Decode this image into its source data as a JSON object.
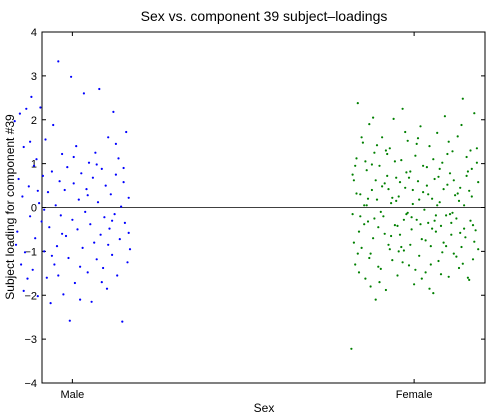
{
  "chart_data": {
    "type": "scatter",
    "title": "Sex vs. component 39 subject–loadings",
    "xlabel": "Sex",
    "ylabel": "Subject loading for component #39",
    "categories": [
      "Male",
      "Female"
    ],
    "ylim": [
      -4,
      4
    ],
    "yticks": [
      "−4",
      "−3",
      "−2",
      "−1",
      "0",
      "1",
      "2",
      "3",
      "4"
    ],
    "zero_line": true,
    "grid": false,
    "series": [
      {
        "color": "#0000ff",
        "points": [
          [
            -0.45,
            1.97
          ],
          [
            -0.43,
            -0.55
          ],
          [
            -0.42,
            0.65
          ],
          [
            -0.41,
            2.14
          ],
          [
            -0.4,
            -1.3
          ],
          [
            -0.39,
            0.25
          ],
          [
            -0.38,
            1.38
          ],
          [
            -0.37,
            -1.02
          ],
          [
            -0.36,
            2.25
          ],
          [
            -0.35,
            -1.62
          ],
          [
            -0.34,
            0.48
          ],
          [
            -0.33,
            -0.2
          ],
          [
            -0.32,
            2.52
          ],
          [
            -0.31,
            -1.42
          ],
          [
            -0.3,
            0.95
          ],
          [
            -0.29,
            -0.7
          ],
          [
            -0.28,
            1.1
          ],
          [
            -0.27,
            -2.02
          ],
          [
            -0.26,
            0.1
          ],
          [
            -0.25,
            2.28
          ],
          [
            -0.24,
            -0.32
          ],
          [
            -0.23,
            0.72
          ],
          [
            -0.22,
            -1.0
          ],
          [
            -0.21,
            1.55
          ],
          [
            -0.2,
            -1.6
          ],
          [
            -0.19,
            0.35
          ],
          [
            -0.18,
            -0.45
          ],
          [
            -0.17,
            -2.18
          ],
          [
            -0.16,
            0.82
          ],
          [
            -0.15,
            1.88
          ],
          [
            -0.14,
            -1.3
          ],
          [
            -0.13,
            0.05
          ],
          [
            -0.12,
            -0.88
          ],
          [
            -0.11,
            3.33
          ],
          [
            -0.1,
            0.6
          ],
          [
            -0.09,
            -0.18
          ],
          [
            -0.08,
            1.22
          ],
          [
            -0.07,
            -1.98
          ],
          [
            -0.06,
            0.4
          ],
          [
            -0.05,
            -0.65
          ],
          [
            -0.04,
            0.92
          ],
          [
            -0.03,
            -1.15
          ],
          [
            -0.02,
            -2.58
          ],
          [
            -0.01,
            2.98
          ],
          [
            0.0,
            -0.28
          ],
          [
            0.01,
            0.55
          ],
          [
            0.02,
            -1.72
          ],
          [
            0.03,
            1.4
          ],
          [
            0.04,
            -0.5
          ],
          [
            0.05,
            0.18
          ],
          [
            0.06,
            -1.35
          ],
          [
            0.07,
            0.78
          ],
          [
            0.08,
            -0.92
          ],
          [
            0.09,
            2.6
          ],
          [
            0.1,
            -0.1
          ],
          [
            0.11,
            0.42
          ],
          [
            0.12,
            -1.48
          ],
          [
            0.13,
            1.02
          ],
          [
            0.14,
            -0.38
          ],
          [
            0.15,
            -2.15
          ],
          [
            0.16,
            0.68
          ],
          [
            0.17,
            -0.8
          ],
          [
            0.18,
            1.25
          ],
          [
            0.19,
            -1.18
          ],
          [
            0.2,
            0.12
          ],
          [
            0.21,
            2.7
          ],
          [
            0.22,
            -0.62
          ],
          [
            0.23,
            0.88
          ],
          [
            0.24,
            -1.38
          ],
          [
            0.25,
            -0.22
          ],
          [
            0.26,
            0.5
          ],
          [
            0.27,
            -1.85
          ],
          [
            0.28,
            1.6
          ],
          [
            0.29,
            -0.48
          ],
          [
            0.3,
            0.3
          ],
          [
            0.31,
            -1.08
          ],
          [
            0.32,
            2.18
          ],
          [
            0.33,
            -0.15
          ],
          [
            0.34,
            0.75
          ],
          [
            0.35,
            -1.55
          ],
          [
            0.36,
            1.12
          ],
          [
            0.37,
            -0.72
          ],
          [
            0.38,
            0.02
          ],
          [
            0.39,
            -2.6
          ],
          [
            0.4,
            0.58
          ],
          [
            0.41,
            -0.35
          ],
          [
            0.42,
            1.72
          ],
          [
            0.43,
            -1.25
          ],
          [
            0.44,
            0.22
          ],
          [
            0.45,
            -0.95
          ],
          [
            -0.44,
            -0.85
          ],
          [
            -0.33,
            1.5
          ],
          [
            -0.22,
            -0.05
          ],
          [
            -0.11,
            -1.55
          ],
          [
            0.01,
            1.15
          ],
          [
            0.12,
            0.28
          ],
          [
            0.23,
            -1.7
          ],
          [
            0.34,
            1.45
          ],
          [
            0.44,
            -0.58
          ],
          [
            -0.27,
            0.38
          ],
          [
            -0.08,
            -0.6
          ],
          [
            0.06,
            -2.1
          ],
          [
            0.19,
            0.98
          ],
          [
            0.31,
            -0.3
          ],
          [
            -0.38,
            -1.9
          ],
          [
            -0.16,
            -1.1
          ],
          [
            0.28,
            -0.85
          ],
          [
            0.4,
            0.9
          ]
        ]
      },
      {
        "color": "#008000",
        "points": [
          [
            -0.49,
            -3.22
          ],
          [
            -0.48,
            -0.15
          ],
          [
            -0.47,
            0.62
          ],
          [
            -0.46,
            -1.3
          ],
          [
            -0.45,
            1.12
          ],
          [
            -0.44,
            2.38
          ],
          [
            -0.43,
            -0.55
          ],
          [
            -0.42,
            0.3
          ],
          [
            -0.41,
            -0.92
          ],
          [
            -0.4,
            1.48
          ],
          [
            -0.39,
            0.05
          ],
          [
            -0.38,
            -1.62
          ],
          [
            -0.37,
            0.85
          ],
          [
            -0.36,
            -0.32
          ],
          [
            -0.35,
            1.9
          ],
          [
            -0.34,
            -1.05
          ],
          [
            -0.33,
            0.4
          ],
          [
            -0.32,
            -0.7
          ],
          [
            -0.31,
            1.25
          ],
          [
            -0.3,
            -2.1
          ],
          [
            -0.29,
            0.18
          ],
          [
            -0.28,
            -0.45
          ],
          [
            -0.27,
            0.95
          ],
          [
            -0.26,
            -1.4
          ],
          [
            -0.25,
            1.6
          ],
          [
            -0.24,
            -0.2
          ],
          [
            -0.23,
            0.55
          ],
          [
            -0.22,
            -1.88
          ],
          [
            -0.21,
            0.72
          ],
          [
            -0.2,
            -0.85
          ],
          [
            -0.19,
            1.35
          ],
          [
            -0.18,
            0.1
          ],
          [
            -0.17,
            -1.2
          ],
          [
            -0.16,
            2.02
          ],
          [
            -0.15,
            -0.4
          ],
          [
            -0.14,
            0.68
          ],
          [
            -0.13,
            -1.55
          ],
          [
            -0.12,
            0.25
          ],
          [
            -0.11,
            -0.62
          ],
          [
            -0.1,
            1.08
          ],
          [
            -0.09,
            2.25
          ],
          [
            -0.08,
            -0.98
          ],
          [
            -0.07,
            0.45
          ],
          [
            -0.06,
            -0.15
          ],
          [
            -0.05,
            1.52
          ],
          [
            -0.04,
            -1.32
          ],
          [
            -0.03,
            0.82
          ],
          [
            -0.02,
            -0.5
          ],
          [
            -0.01,
            0.08
          ],
          [
            0.0,
            -1.75
          ],
          [
            0.01,
            1.18
          ],
          [
            0.02,
            -0.28
          ],
          [
            0.03,
            0.6
          ],
          [
            0.04,
            -1.1
          ],
          [
            0.05,
            1.85
          ],
          [
            0.06,
            -0.72
          ],
          [
            0.07,
            0.35
          ],
          [
            0.08,
            -0.05
          ],
          [
            0.09,
            -1.48
          ],
          [
            0.1,
            0.92
          ],
          [
            0.11,
            -0.35
          ],
          [
            0.12,
            1.4
          ],
          [
            0.13,
            -0.88
          ],
          [
            0.14,
            0.2
          ],
          [
            0.15,
            -1.95
          ],
          [
            0.16,
            0.65
          ],
          [
            0.17,
            -0.55
          ],
          [
            0.18,
            1.7
          ],
          [
            0.19,
            -1.22
          ],
          [
            0.2,
            0.12
          ],
          [
            0.21,
            -0.42
          ],
          [
            0.22,
            1.02
          ],
          [
            0.23,
            -0.8
          ],
          [
            0.24,
            2.08
          ],
          [
            0.25,
            -0.18
          ],
          [
            0.26,
            0.52
          ],
          [
            0.27,
            -1.58
          ],
          [
            0.28,
            0.78
          ],
          [
            0.29,
            -0.62
          ],
          [
            0.3,
            1.28
          ],
          [
            0.31,
            -1.05
          ],
          [
            0.32,
            0.28
          ],
          [
            0.33,
            -0.25
          ],
          [
            0.34,
            1.62
          ],
          [
            0.35,
            -1.38
          ],
          [
            0.36,
            0.45
          ],
          [
            0.37,
            -0.9
          ],
          [
            0.38,
            2.48
          ],
          [
            0.39,
            0.05
          ],
          [
            0.4,
            -0.68
          ],
          [
            0.41,
            1.15
          ],
          [
            0.42,
            -1.6
          ],
          [
            0.43,
            0.38
          ],
          [
            0.44,
            -0.3
          ],
          [
            0.45,
            0.88
          ],
          [
            0.46,
            -1.18
          ],
          [
            0.47,
            2.15
          ],
          [
            0.48,
            -0.52
          ],
          [
            0.49,
            1.35
          ],
          [
            0.5,
            -0.95
          ],
          [
            -0.48,
            0.75
          ],
          [
            -0.47,
            -0.8
          ],
          [
            -0.45,
            0.32
          ],
          [
            -0.43,
            -1.48
          ],
          [
            -0.41,
            1.6
          ],
          [
            -0.39,
            -0.38
          ],
          [
            -0.37,
            0.05
          ],
          [
            -0.35,
            -1.15
          ],
          [
            -0.33,
            0.98
          ],
          [
            -0.31,
            -0.25
          ],
          [
            -0.29,
            1.42
          ],
          [
            -0.27,
            -1.7
          ],
          [
            -0.25,
            0.48
          ],
          [
            -0.23,
            -0.6
          ],
          [
            -0.21,
            1.22
          ],
          [
            -0.19,
            -0.95
          ],
          [
            -0.17,
            0.22
          ],
          [
            -0.15,
            1.05
          ],
          [
            -0.13,
            -0.42
          ],
          [
            -0.11,
            0.58
          ],
          [
            -0.09,
            -1.25
          ],
          [
            -0.07,
            1.72
          ],
          [
            -0.05,
            -0.12
          ],
          [
            -0.03,
            -0.85
          ],
          [
            -0.01,
            0.4
          ],
          [
            0.01,
            -1.42
          ],
          [
            0.03,
            1.58
          ],
          [
            0.05,
            -0.38
          ],
          [
            0.07,
            0.95
          ],
          [
            0.09,
            -0.75
          ],
          [
            0.11,
            0.3
          ],
          [
            0.13,
            -1.3
          ],
          [
            0.15,
            1.1
          ],
          [
            0.17,
            -0.18
          ],
          [
            0.19,
            0.7
          ],
          [
            0.21,
            -1.52
          ],
          [
            0.23,
            0.42
          ],
          [
            0.25,
            -0.88
          ],
          [
            0.27,
            1.5
          ],
          [
            0.29,
            -0.35
          ],
          [
            0.31,
            0.62
          ],
          [
            0.33,
            -1.12
          ],
          [
            0.35,
            0.15
          ],
          [
            0.37,
            1.88
          ],
          [
            0.39,
            -0.48
          ],
          [
            0.41,
            0.72
          ],
          [
            0.43,
            -1.65
          ],
          [
            0.45,
            0.25
          ],
          [
            0.47,
            -0.78
          ],
          [
            0.49,
            1.02
          ],
          [
            -0.46,
            0.95
          ],
          [
            -0.42,
            -0.2
          ],
          [
            -0.38,
            1.05
          ],
          [
            -0.34,
            -1.8
          ],
          [
            -0.3,
            0.62
          ],
          [
            -0.26,
            -0.1
          ],
          [
            -0.22,
            1.3
          ],
          [
            -0.18,
            -0.65
          ],
          [
            -0.14,
            0.15
          ],
          [
            -0.1,
            -0.9
          ],
          [
            -0.06,
            0.8
          ],
          [
            -0.02,
            -0.22
          ],
          [
            0.02,
            1.45
          ],
          [
            0.06,
            -1.62
          ],
          [
            0.1,
            0.5
          ],
          [
            0.14,
            -0.48
          ],
          [
            0.18,
            0.05
          ],
          [
            0.22,
            -1.02
          ],
          [
            0.26,
            1.22
          ],
          [
            0.3,
            -0.12
          ],
          [
            0.34,
            0.32
          ],
          [
            0.38,
            -1.28
          ],
          [
            0.42,
            0.82
          ],
          [
            0.46,
            -0.4
          ],
          [
            0.5,
            0.58
          ],
          [
            -0.44,
            -1.05
          ],
          [
            -0.36,
            0.2
          ],
          [
            -0.28,
            -1.35
          ],
          [
            -0.2,
            0.42
          ],
          [
            -0.12,
            -1.0
          ],
          [
            -0.04,
            0.68
          ],
          [
            0.04,
            0.18
          ],
          [
            0.12,
            -1.85
          ],
          [
            0.2,
            0.88
          ],
          [
            0.28,
            -0.15
          ],
          [
            0.36,
            -0.58
          ],
          [
            0.44,
            1.3
          ],
          [
            -0.32,
            2.05
          ],
          [
            -0.08,
            -0.28
          ],
          [
            0.16,
            -0.3
          ]
        ]
      }
    ]
  }
}
